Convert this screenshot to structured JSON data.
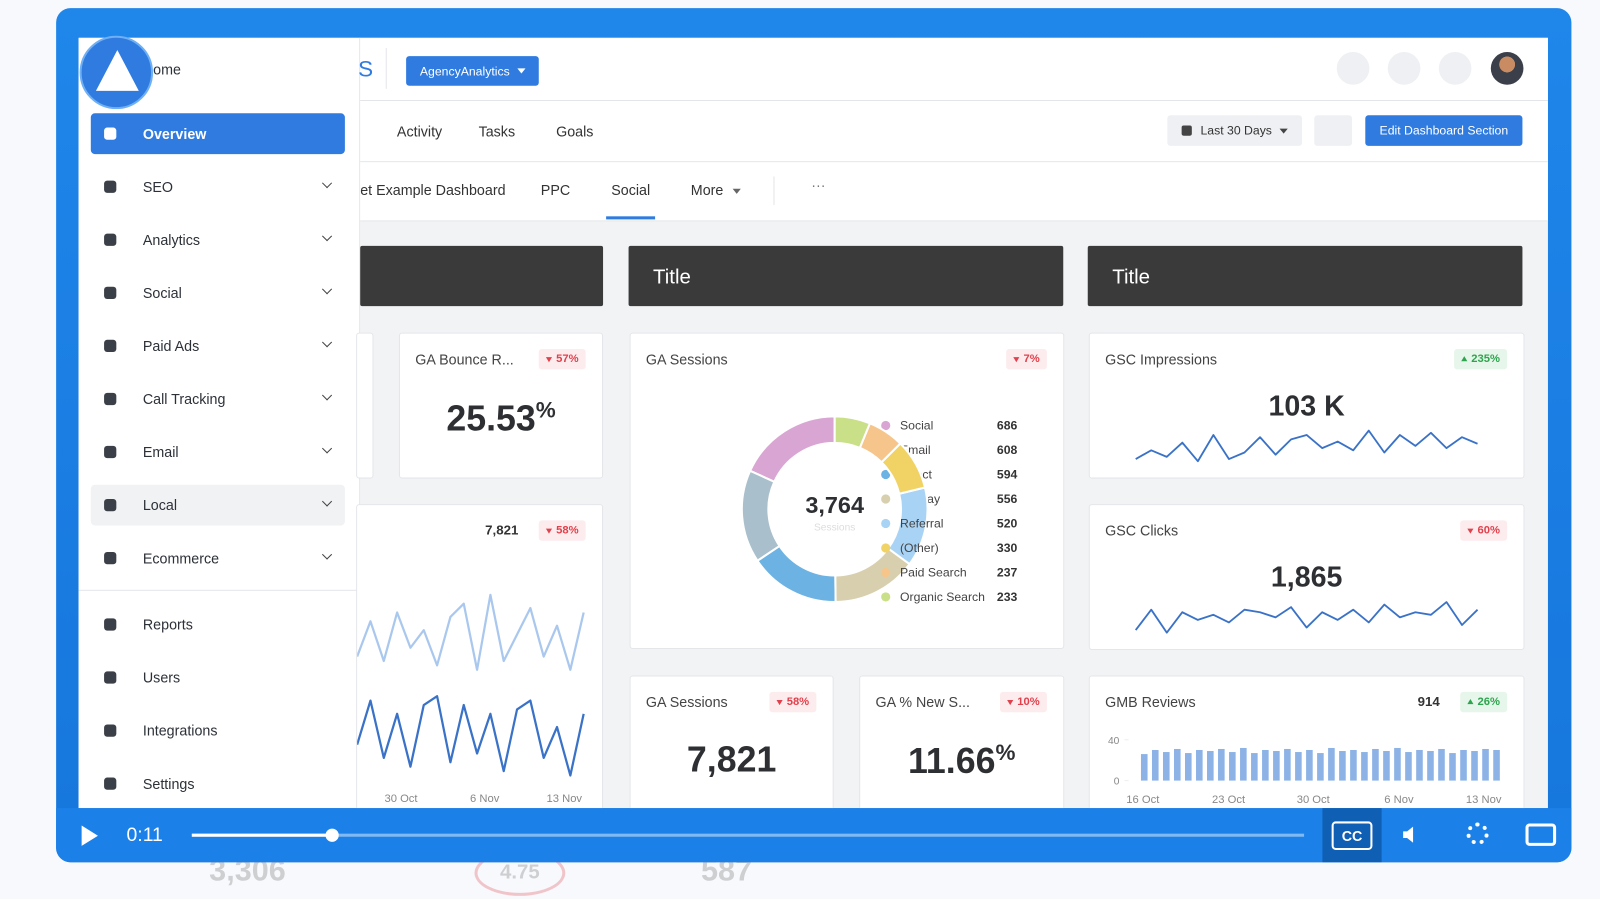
{
  "sidebar": {
    "home": "Home",
    "nav": [
      "Overview",
      "SEO",
      "Analytics",
      "Social",
      "Paid Ads",
      "Call Tracking",
      "Email",
      "Local",
      "Ecommerce"
    ],
    "active": 0,
    "hover": 7,
    "bottom": [
      "Reports",
      "Users",
      "Integrations",
      "Settings"
    ]
  },
  "topbar": {
    "partial": "S",
    "agency": "AgencyAnalytics",
    "tabs": [
      "Activity",
      "Tasks",
      "Goals"
    ],
    "date_range": "Last 30 Days",
    "edit": "Edit Dashboard Section"
  },
  "dashboard_tabs": {
    "items": [
      "et Example Dashboard",
      "PPC",
      "Social",
      "More"
    ],
    "active": 2,
    "overflow": "···"
  },
  "sections": [
    "Title",
    "Title"
  ],
  "widgets": {
    "bounce": {
      "title": "GA Bounce R...",
      "change": "57%",
      "trend": "down",
      "value": "25.53",
      "unit": "%"
    },
    "sessions_line": {
      "value": "7,821",
      "change": "58%",
      "trend": "down",
      "x_labels": [
        "30 Oct",
        "6 Nov",
        "13 Nov"
      ],
      "series": [
        {
          "color": "#aac8ee",
          "values": [
            62,
            78,
            60,
            82,
            66,
            74,
            58,
            80,
            86,
            56,
            90,
            60,
            72,
            84,
            62,
            76,
            56,
            82
          ]
        },
        {
          "color": "#3a72c8",
          "values": [
            22,
            42,
            16,
            36,
            12,
            40,
            44,
            14,
            40,
            18,
            36,
            10,
            38,
            42,
            16,
            30,
            8,
            36
          ]
        }
      ]
    },
    "donut": {
      "title": "GA Sessions",
      "change": "7%",
      "trend": "down",
      "total": "3,764",
      "label": "Sessions",
      "categories": [
        "Social",
        "Email",
        "Direct",
        "Display",
        "Referral",
        "(Other)",
        "Paid Search",
        "Organic Search"
      ],
      "values": [
        686,
        608,
        594,
        556,
        520,
        330,
        237,
        233
      ],
      "colors": [
        "#d9a6d3",
        "#a9bfcb",
        "#6cb2e2",
        "#d8cfae",
        "#a8d3f5",
        "#f1d365",
        "#f6c58b",
        "#c9df88"
      ]
    },
    "impressions": {
      "title": "GSC Impressions",
      "change": "235%",
      "trend": "up",
      "value": "103 K",
      "color": "#3a72c8",
      "values": [
        40,
        48,
        42,
        55,
        38,
        62,
        40,
        46,
        60,
        44,
        58,
        62,
        50,
        56,
        48,
        66,
        46,
        62,
        52,
        64,
        50,
        60,
        54
      ]
    },
    "clicks": {
      "title": "GSC Clicks",
      "change": "60%",
      "trend": "down",
      "value": "1,865",
      "color": "#3a72c8",
      "values": [
        42,
        58,
        40,
        56,
        50,
        54,
        48,
        58,
        56,
        52,
        60,
        44,
        56,
        50,
        58,
        48,
        62,
        52,
        56,
        54,
        64,
        46,
        58
      ]
    },
    "sessions": {
      "title": "GA Sessions",
      "change": "58%",
      "trend": "down",
      "value": "7,821"
    },
    "new_sessions": {
      "title": "GA % New S...",
      "change": "10%",
      "trend": "down",
      "value": "11.66",
      "unit": "%"
    },
    "gmb": {
      "title": "GMB Reviews",
      "value": "914",
      "change": "26%",
      "trend": "up",
      "color": "#8db3e6",
      "ylim": [
        0,
        40
      ],
      "yticks": [
        40,
        0
      ],
      "x_labels": [
        "16 Oct",
        "23 Oct",
        "30 Oct",
        "6 Nov",
        "13 Nov"
      ],
      "values": [
        26,
        30,
        28,
        31,
        27,
        30,
        29,
        31,
        28,
        32,
        27,
        30,
        29,
        31,
        28,
        30,
        27,
        32,
        29,
        30,
        28,
        31,
        29,
        32,
        28,
        30,
        29,
        31,
        27,
        30,
        29,
        31,
        30
      ]
    }
  },
  "player": {
    "time": "0:11",
    "progress": 0.126,
    "cc": "CC"
  },
  "below": [
    "3,306",
    "4.75",
    "587"
  ]
}
